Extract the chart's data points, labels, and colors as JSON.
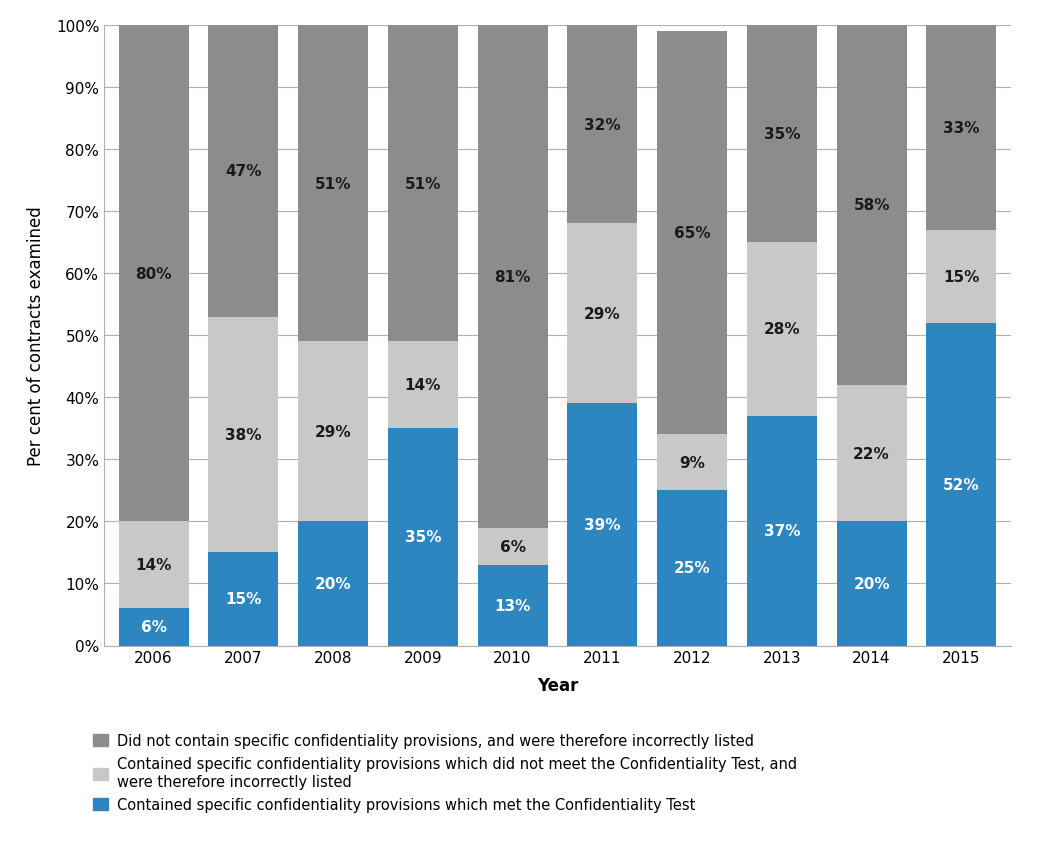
{
  "years": [
    "2006",
    "2007",
    "2008",
    "2009",
    "2010",
    "2011",
    "2012",
    "2013",
    "2014",
    "2015"
  ],
  "blue": [
    6,
    15,
    20,
    35,
    13,
    39,
    25,
    37,
    20,
    52
  ],
  "light_gray": [
    14,
    38,
    29,
    14,
    6,
    29,
    9,
    28,
    22,
    15
  ],
  "dark_gray": [
    80,
    47,
    51,
    51,
    81,
    32,
    65,
    35,
    58,
    33
  ],
  "blue_color": "#2E86C1",
  "light_gray_color": "#C8C8C8",
  "dark_gray_color": "#8C8C8C",
  "ylabel": "Per cent of contracts examined",
  "xlabel": "Year",
  "yticks": [
    0,
    10,
    20,
    30,
    40,
    50,
    60,
    70,
    80,
    90,
    100
  ],
  "ytick_labels": [
    "0%",
    "10%",
    "20%",
    "30%",
    "40%",
    "50%",
    "60%",
    "70%",
    "80%",
    "90%",
    "100%"
  ],
  "legend_dark_gray": "Did not contain specific confidentiality provisions, and were therefore incorrectly listed",
  "legend_light_gray": "Contained specific confidentiality provisions which did not meet the Confidentiality Test, and\nwere therefore incorrectly listed",
  "legend_blue": "Contained specific confidentiality provisions which met the Confidentiality Test",
  "background_color": "#FFFFFF",
  "grid_color": "#B0B0B0",
  "label_fontsize": 11,
  "axis_label_fontsize": 12,
  "legend_fontsize": 10.5,
  "bar_width": 0.78
}
